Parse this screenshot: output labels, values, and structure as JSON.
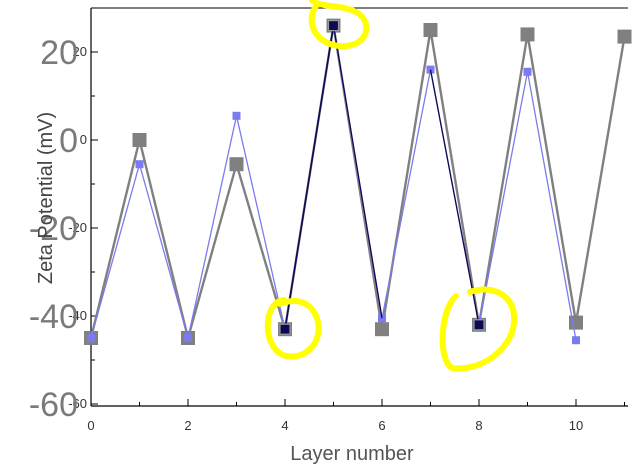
{
  "chart_data": {
    "type": "line",
    "xlabel": "Layer number",
    "ylabel": "Zeta Potential (mV)",
    "xlim": [
      0,
      11
    ],
    "ylim": [
      -60,
      30
    ],
    "x_ticks": [
      "0",
      "2",
      "4",
      "6",
      "8",
      "10"
    ],
    "y_ticks": [
      "20",
      "0",
      "-20",
      "-40",
      "-60"
    ],
    "overlay_y_ticks": [
      "20",
      "0",
      "-20",
      "-40",
      "-60"
    ],
    "grid": false,
    "legend": "none",
    "series": [
      {
        "color": "#808080",
        "marker": "square",
        "x": [
          0,
          1,
          2,
          3,
          4,
          5,
          6,
          7,
          8,
          9,
          10,
          11
        ],
        "values": [
          -45,
          0,
          -45,
          -5.5,
          -43,
          26,
          -43,
          25,
          -42,
          24,
          -41.5,
          23.5
        ]
      },
      {
        "color": "#7b7bf0",
        "marker": "square",
        "x": [
          0,
          1,
          2,
          3,
          4,
          5,
          6,
          7,
          8,
          9,
          10
        ],
        "values": [
          -45,
          -5.5,
          -45,
          5.5,
          -43,
          26,
          -40.5,
          16,
          -42,
          15.5,
          -45.5
        ]
      },
      {
        "color": "#0a0a55",
        "marker": "square",
        "x": [
          4,
          5,
          8
        ],
        "values": [
          -43,
          26,
          -42
        ]
      }
    ],
    "annotations": [
      {
        "type": "highlight-circle",
        "x": 4,
        "y": -43,
        "color": "#ffff00"
      },
      {
        "type": "highlight-circle",
        "x": 5,
        "y": 26,
        "color": "#ffff00"
      },
      {
        "type": "highlight-circle",
        "x": 8,
        "y": -42,
        "color": "#ffff00"
      }
    ]
  }
}
